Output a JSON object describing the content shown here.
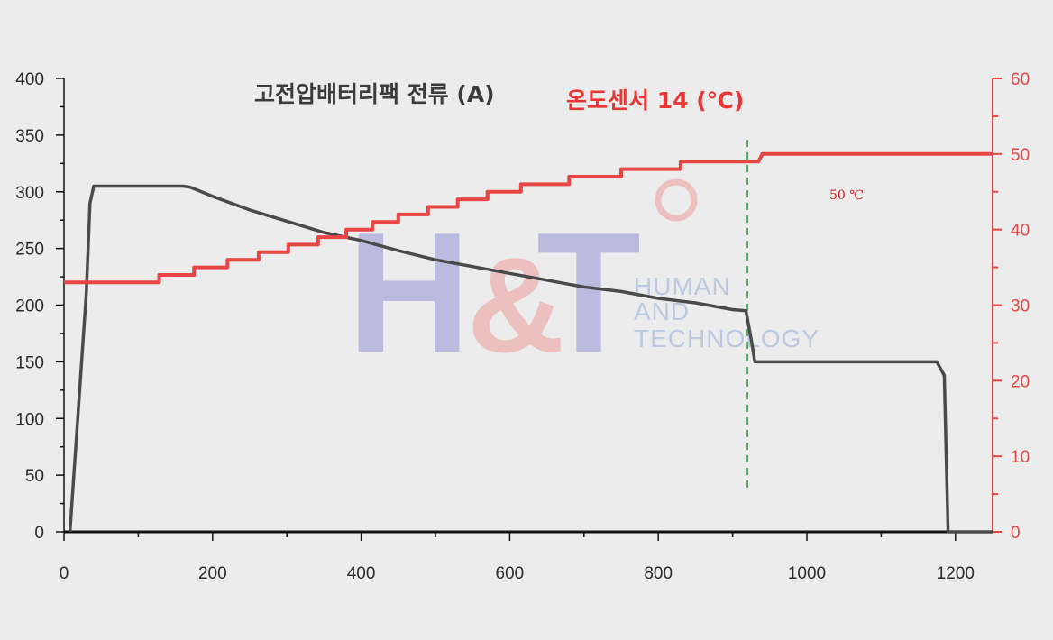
{
  "chart_data": {
    "type": "line",
    "title_current": "고전압배터리팩 전류 (A)",
    "title_temp": "온도센서 14 (℃)",
    "annotation": "50 ℃",
    "watermark": {
      "logo_h": "H",
      "logo_amp": "&",
      "logo_t": "T",
      "line1": "HUMAN",
      "line2": "AND",
      "line3": "TECHNOLOGY"
    },
    "xlim": [
      0,
      1250
    ],
    "ylim_left": [
      0,
      400
    ],
    "ylim_right": [
      0,
      60
    ],
    "x_ticks": [
      0,
      200,
      400,
      600,
      800,
      1000,
      1200
    ],
    "y_left_ticks": [
      0,
      50,
      100,
      150,
      200,
      250,
      300,
      350,
      400
    ],
    "y_right_ticks": [
      0,
      10,
      20,
      30,
      40,
      50,
      60
    ],
    "vline_x": 920,
    "colors": {
      "current": "#4a4a4a",
      "temperature": "#e84545",
      "vline": "#4caf50",
      "axis": "#111111",
      "right_axis": "#e84545"
    },
    "series": [
      {
        "axis": "left",
        "x": [
          8,
          30,
          35,
          40,
          60,
          100,
          160,
          170,
          200,
          250,
          300,
          350,
          400,
          450,
          500,
          550,
          600,
          650,
          700,
          750,
          800,
          850,
          900,
          918,
          925,
          930,
          1000,
          1050,
          1100,
          1150,
          1175,
          1185,
          1190,
          1200,
          1250
        ],
        "values": [
          0,
          210,
          290,
          305,
          305,
          305,
          305,
          304,
          296,
          284,
          274,
          264,
          257,
          248,
          240,
          234,
          228,
          222,
          216,
          212,
          206,
          202,
          196,
          195,
          170,
          150,
          150,
          150,
          150,
          150,
          150,
          138,
          0,
          0,
          0
        ]
      },
      {
        "axis": "right",
        "x": [
          0,
          128,
          128,
          175,
          175,
          220,
          220,
          262,
          262,
          302,
          302,
          342,
          342,
          380,
          380,
          415,
          415,
          450,
          450,
          490,
          490,
          530,
          530,
          570,
          570,
          615,
          615,
          680,
          680,
          750,
          750,
          830,
          830,
          935,
          940,
          1250
        ],
        "values": [
          33,
          33,
          34,
          34,
          35,
          35,
          36,
          36,
          37,
          37,
          38,
          38,
          39,
          39,
          40,
          40,
          41,
          41,
          42,
          42,
          43,
          43,
          44,
          44,
          45,
          45,
          46,
          46,
          47,
          47,
          48,
          48,
          49,
          49,
          50,
          50
        ]
      }
    ]
  }
}
